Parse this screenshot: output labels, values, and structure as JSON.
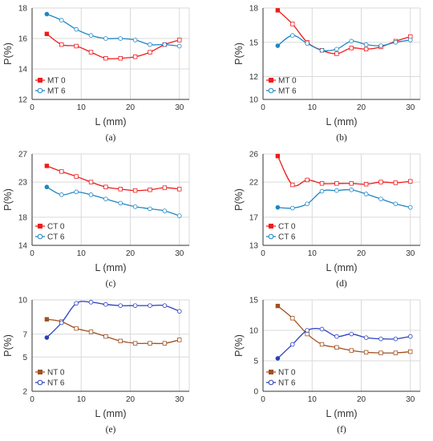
{
  "colors": {
    "red": "#ee1c1c",
    "blue": "#1f86c4",
    "brown": "#a05020",
    "navy": "#2a3fbf",
    "grid": "#d9d9d9",
    "axis": "#333333"
  },
  "chart_data": [
    {
      "id": "a",
      "type": "line",
      "caption": "(a)",
      "xlabel": "L (mm)",
      "ylabel": "P(%)",
      "xticks": [
        0,
        10,
        20,
        30
      ],
      "yticks": [
        12,
        14,
        16,
        18
      ],
      "ylim": [
        12,
        18
      ],
      "xlim": [
        0,
        32
      ],
      "legend": "bottom-left",
      "grid": true,
      "series": [
        {
          "name": "MT 0",
          "color": "red",
          "marker": "square",
          "x": [
            3,
            6,
            9,
            12,
            15,
            18,
            21,
            24,
            27,
            30
          ],
          "y": [
            16.3,
            15.6,
            15.5,
            15.1,
            14.7,
            14.7,
            14.8,
            15.1,
            15.6,
            15.9
          ]
        },
        {
          "name": "MT 6",
          "color": "blue",
          "marker": "circle",
          "x": [
            3,
            6,
            9,
            12,
            15,
            18,
            21,
            24,
            27,
            30
          ],
          "y": [
            17.6,
            17.2,
            16.6,
            16.2,
            16.0,
            16.0,
            15.9,
            15.6,
            15.6,
            15.5
          ]
        }
      ]
    },
    {
      "id": "b",
      "type": "line",
      "caption": "(b)",
      "xlabel": "L (mm)",
      "ylabel": "P(%)",
      "xticks": [
        0,
        10,
        20,
        30
      ],
      "yticks": [
        10,
        12,
        15,
        18
      ],
      "ylim": [
        10,
        18
      ],
      "xlim": [
        0,
        32
      ],
      "legend": "bottom-left",
      "grid": true,
      "series": [
        {
          "name": "MT 0",
          "color": "red",
          "marker": "square",
          "x": [
            3,
            6,
            9,
            12,
            15,
            18,
            21,
            24,
            27,
            30
          ],
          "y": [
            17.8,
            16.6,
            15.0,
            14.3,
            14.0,
            14.5,
            14.4,
            14.6,
            15.1,
            15.5
          ]
        },
        {
          "name": "MT 6",
          "color": "blue",
          "marker": "circle",
          "x": [
            3,
            6,
            9,
            12,
            15,
            18,
            21,
            24,
            27,
            30
          ],
          "y": [
            14.7,
            15.6,
            14.9,
            14.3,
            14.4,
            15.1,
            14.8,
            14.7,
            15.0,
            15.2
          ]
        }
      ]
    },
    {
      "id": "c",
      "type": "line",
      "caption": "(c)",
      "xlabel": "L (mm)",
      "ylabel": "P(%)",
      "xticks": [
        0,
        10,
        20,
        30
      ],
      "yticks": [
        14,
        18,
        23,
        27
      ],
      "ylim": [
        14,
        27
      ],
      "xlim": [
        0,
        32
      ],
      "legend": "bottom-left",
      "grid": true,
      "series": [
        {
          "name": "CT 0",
          "color": "red",
          "marker": "square",
          "x": [
            3,
            6,
            9,
            12,
            15,
            18,
            21,
            24,
            27,
            30
          ],
          "y": [
            25.3,
            24.5,
            23.8,
            23.0,
            22.3,
            22.0,
            21.8,
            21.9,
            22.2,
            22.0
          ]
        },
        {
          "name": "CT 6",
          "color": "blue",
          "marker": "circle",
          "x": [
            3,
            6,
            9,
            12,
            15,
            18,
            21,
            24,
            27,
            30
          ],
          "y": [
            22.3,
            21.2,
            21.6,
            21.2,
            20.6,
            20.0,
            19.5,
            19.2,
            18.9,
            18.2
          ]
        }
      ]
    },
    {
      "id": "d",
      "type": "line",
      "caption": "(d)",
      "xlabel": "L (mm)",
      "ylabel": "P(%)",
      "xticks": [
        0,
        10,
        20,
        30
      ],
      "yticks": [
        13,
        17,
        22,
        26
      ],
      "ylim": [
        13,
        26
      ],
      "xlim": [
        0,
        32
      ],
      "legend": "bottom-left",
      "grid": true,
      "series": [
        {
          "name": "CT 0",
          "color": "red",
          "marker": "square",
          "x": [
            3,
            6,
            9,
            12,
            15,
            18,
            21,
            24,
            27,
            30
          ],
          "y": [
            25.7,
            21.6,
            22.3,
            21.8,
            21.8,
            21.8,
            21.7,
            22.0,
            21.9,
            22.1
          ]
        },
        {
          "name": "CT 6",
          "color": "blue",
          "marker": "circle",
          "x": [
            3,
            6,
            9,
            12,
            15,
            18,
            21,
            24,
            27,
            30
          ],
          "y": [
            18.4,
            18.3,
            18.9,
            20.7,
            20.8,
            20.9,
            20.3,
            19.6,
            18.9,
            18.4
          ]
        }
      ]
    },
    {
      "id": "e",
      "type": "line",
      "caption": "(e)",
      "xlabel": "L (mm)",
      "ylabel": "P(%)",
      "xticks": [
        0,
        10,
        20,
        30
      ],
      "yticks": [
        2,
        5,
        7,
        10
      ],
      "ylim": [
        2,
        10
      ],
      "xlim": [
        0,
        32
      ],
      "legend": "bottom-left",
      "grid": true,
      "series": [
        {
          "name": "NT 0",
          "color": "brown",
          "marker": "square",
          "x": [
            3,
            6,
            9,
            12,
            15,
            18,
            21,
            24,
            27,
            30
          ],
          "y": [
            8.3,
            8.1,
            7.5,
            7.2,
            6.8,
            6.4,
            6.2,
            6.2,
            6.2,
            6.5
          ]
        },
        {
          "name": "NT 6",
          "color": "navy",
          "marker": "circle",
          "x": [
            3,
            6,
            9,
            12,
            15,
            18,
            21,
            24,
            27,
            30
          ],
          "y": [
            6.7,
            8.0,
            9.7,
            9.8,
            9.6,
            9.5,
            9.5,
            9.5,
            9.5,
            9.0
          ]
        }
      ]
    },
    {
      "id": "f",
      "type": "line",
      "caption": "(f)",
      "xlabel": "L (mm)",
      "ylabel": "P(%)",
      "xticks": [
        0,
        10,
        20,
        30
      ],
      "yticks": [
        0,
        5,
        10,
        15
      ],
      "ylim": [
        0,
        15
      ],
      "xlim": [
        0,
        32
      ],
      "legend": "bottom-left",
      "grid": true,
      "series": [
        {
          "name": "NT 0",
          "color": "brown",
          "marker": "square",
          "x": [
            3,
            6,
            9,
            12,
            15,
            18,
            21,
            24,
            27,
            30
          ],
          "y": [
            14.0,
            12.0,
            9.4,
            7.7,
            7.2,
            6.7,
            6.4,
            6.3,
            6.3,
            6.5
          ]
        },
        {
          "name": "NT 6",
          "color": "navy",
          "marker": "circle",
          "x": [
            3,
            6,
            9,
            12,
            15,
            18,
            21,
            24,
            27,
            30
          ],
          "y": [
            5.4,
            7.7,
            10.0,
            10.2,
            9.0,
            9.4,
            8.8,
            8.6,
            8.6,
            9.0
          ]
        }
      ]
    }
  ]
}
